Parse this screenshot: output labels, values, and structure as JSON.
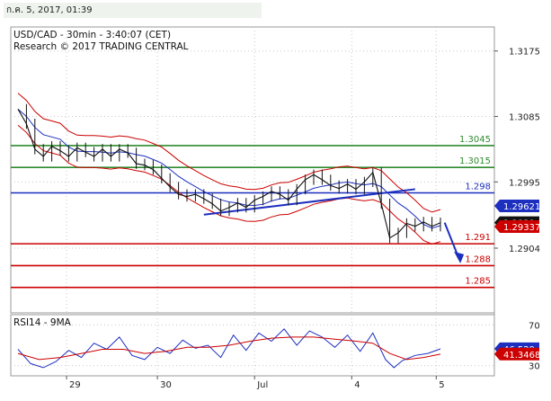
{
  "header": {
    "timestamp": "ก.ค. 5, 2017, 01:39"
  },
  "chart_data": {
    "type": "line",
    "title": "USD/CAD - 30min - 3:40:07 (CET)",
    "subtitle": "Research © 2017 TRADING CENTRAL",
    "x_tick_labels": [
      "29",
      "30",
      "Jul",
      "4",
      "5"
    ],
    "y_tick_labels": [
      "1.3175",
      "1.3085",
      "1.2995",
      "1.2904"
    ],
    "ylim": [
      1.2815,
      1.3208
    ],
    "current_price": {
      "value": 1.2939,
      "label": "1.2939"
    },
    "indicator_labels": [
      {
        "value": 1.29621,
        "label": "1.29621"
      },
      {
        "value": 1.29337,
        "label": "1.29337"
      }
    ],
    "levels": [
      {
        "value": 1.3045,
        "label": "1.3045",
        "color": "#2e8b2e",
        "kind": "resistance"
      },
      {
        "value": 1.3015,
        "label": "1.3015",
        "color": "#2e8b2e",
        "kind": "resistance"
      },
      {
        "value": 1.298,
        "label": "1.298",
        "color": "#1c2fbf",
        "kind": "pivot"
      },
      {
        "value": 1.291,
        "label": "1.291",
        "color": "#cc0000",
        "kind": "support"
      },
      {
        "value": 1.288,
        "label": "1.288",
        "color": "#cc0000",
        "kind": "support"
      },
      {
        "value": 1.285,
        "label": "1.285",
        "color": "#cc0000",
        "kind": "support"
      }
    ],
    "price_series": [
      {
        "x": 0,
        "y": 1.3095
      },
      {
        "x": 2,
        "y": 1.3075
      },
      {
        "x": 4,
        "y": 1.304
      },
      {
        "x": 6,
        "y": 1.303
      },
      {
        "x": 8,
        "y": 1.3044
      },
      {
        "x": 10,
        "y": 1.3038
      },
      {
        "x": 12,
        "y": 1.303
      },
      {
        "x": 14,
        "y": 1.3042
      },
      {
        "x": 16,
        "y": 1.3036
      },
      {
        "x": 18,
        "y": 1.303
      },
      {
        "x": 20,
        "y": 1.304
      },
      {
        "x": 22,
        "y": 1.303
      },
      {
        "x": 24,
        "y": 1.304
      },
      {
        "x": 26,
        "y": 1.3035
      },
      {
        "x": 28,
        "y": 1.302
      },
      {
        "x": 30,
        "y": 1.3018
      },
      {
        "x": 32,
        "y": 1.3012
      },
      {
        "x": 34,
        "y": 1.3
      },
      {
        "x": 36,
        "y": 1.2988
      },
      {
        "x": 38,
        "y": 1.2978
      },
      {
        "x": 40,
        "y": 1.2975
      },
      {
        "x": 42,
        "y": 1.2978
      },
      {
        "x": 44,
        "y": 1.2972
      },
      {
        "x": 46,
        "y": 1.2965
      },
      {
        "x": 48,
        "y": 1.2955
      },
      {
        "x": 50,
        "y": 1.296
      },
      {
        "x": 52,
        "y": 1.2966
      },
      {
        "x": 54,
        "y": 1.296
      },
      {
        "x": 56,
        "y": 1.297
      },
      {
        "x": 58,
        "y": 1.2975
      },
      {
        "x": 60,
        "y": 1.2982
      },
      {
        "x": 62,
        "y": 1.2978
      },
      {
        "x": 64,
        "y": 1.297
      },
      {
        "x": 66,
        "y": 1.2985
      },
      {
        "x": 68,
        "y": 1.2998
      },
      {
        "x": 70,
        "y": 1.3005
      },
      {
        "x": 72,
        "y": 1.2998
      },
      {
        "x": 74,
        "y": 1.299
      },
      {
        "x": 76,
        "y": 1.2986
      },
      {
        "x": 78,
        "y": 1.2992
      },
      {
        "x": 80,
        "y": 1.2985
      },
      {
        "x": 82,
        "y": 1.2995
      },
      {
        "x": 84,
        "y": 1.3008
      },
      {
        "x": 86,
        "y": 1.2965
      },
      {
        "x": 88,
        "y": 1.2918
      },
      {
        "x": 90,
        "y": 1.2925
      },
      {
        "x": 92,
        "y": 1.2938
      },
      {
        "x": 94,
        "y": 1.2934
      },
      {
        "x": 96,
        "y": 1.294
      },
      {
        "x": 98,
        "y": 1.2934
      },
      {
        "x": 100,
        "y": 1.2939
      }
    ],
    "projection": {
      "from": {
        "x": 101,
        "y": 1.2939
      },
      "to": {
        "x": 104.5,
        "y": 1.2888
      }
    },
    "rsi": {
      "label": "RSI14 - 9MA",
      "value_label": "46.529",
      "ma_label": "41.3468",
      "ylim": [
        20,
        80
      ],
      "tick_labels": [
        "70",
        "30"
      ],
      "values": [
        {
          "x": 0,
          "y": 46
        },
        {
          "x": 3,
          "y": 32
        },
        {
          "x": 6,
          "y": 28
        },
        {
          "x": 9,
          "y": 34
        },
        {
          "x": 12,
          "y": 45
        },
        {
          "x": 15,
          "y": 38
        },
        {
          "x": 18,
          "y": 52
        },
        {
          "x": 21,
          "y": 46
        },
        {
          "x": 24,
          "y": 58
        },
        {
          "x": 27,
          "y": 40
        },
        {
          "x": 30,
          "y": 36
        },
        {
          "x": 33,
          "y": 48
        },
        {
          "x": 36,
          "y": 42
        },
        {
          "x": 39,
          "y": 55
        },
        {
          "x": 42,
          "y": 47
        },
        {
          "x": 45,
          "y": 50
        },
        {
          "x": 48,
          "y": 38
        },
        {
          "x": 51,
          "y": 60
        },
        {
          "x": 54,
          "y": 45
        },
        {
          "x": 57,
          "y": 62
        },
        {
          "x": 60,
          "y": 54
        },
        {
          "x": 63,
          "y": 66
        },
        {
          "x": 66,
          "y": 50
        },
        {
          "x": 69,
          "y": 64
        },
        {
          "x": 72,
          "y": 58
        },
        {
          "x": 75,
          "y": 48
        },
        {
          "x": 78,
          "y": 60
        },
        {
          "x": 81,
          "y": 44
        },
        {
          "x": 84,
          "y": 62
        },
        {
          "x": 87,
          "y": 36
        },
        {
          "x": 89,
          "y": 28
        },
        {
          "x": 91,
          "y": 35
        },
        {
          "x": 94,
          "y": 40
        },
        {
          "x": 97,
          "y": 42
        },
        {
          "x": 100,
          "y": 46.5
        }
      ],
      "ma_values": [
        {
          "x": 0,
          "y": 42
        },
        {
          "x": 5,
          "y": 36
        },
        {
          "x": 10,
          "y": 38
        },
        {
          "x": 15,
          "y": 42
        },
        {
          "x": 20,
          "y": 46
        },
        {
          "x": 25,
          "y": 46
        },
        {
          "x": 30,
          "y": 42
        },
        {
          "x": 35,
          "y": 44
        },
        {
          "x": 40,
          "y": 48
        },
        {
          "x": 45,
          "y": 48
        },
        {
          "x": 50,
          "y": 50
        },
        {
          "x": 55,
          "y": 54
        },
        {
          "x": 60,
          "y": 57
        },
        {
          "x": 65,
          "y": 58
        },
        {
          "x": 70,
          "y": 58
        },
        {
          "x": 75,
          "y": 56
        },
        {
          "x": 80,
          "y": 54
        },
        {
          "x": 84,
          "y": 52
        },
        {
          "x": 88,
          "y": 42
        },
        {
          "x": 92,
          "y": 36
        },
        {
          "x": 96,
          "y": 38
        },
        {
          "x": 100,
          "y": 41.3
        }
      ]
    },
    "colors": {
      "price": "#111111",
      "bands": "#cc0000",
      "moving_average": "#1c2fbf",
      "trendline": "#1c2fbf",
      "rsi": "#1c2fbf",
      "rsi_ma": "#cc0000",
      "current_price_bg": "#111111",
      "indicator_blue_bg": "#1c2fbf",
      "indicator_red_bg": "#cc0000"
    }
  }
}
